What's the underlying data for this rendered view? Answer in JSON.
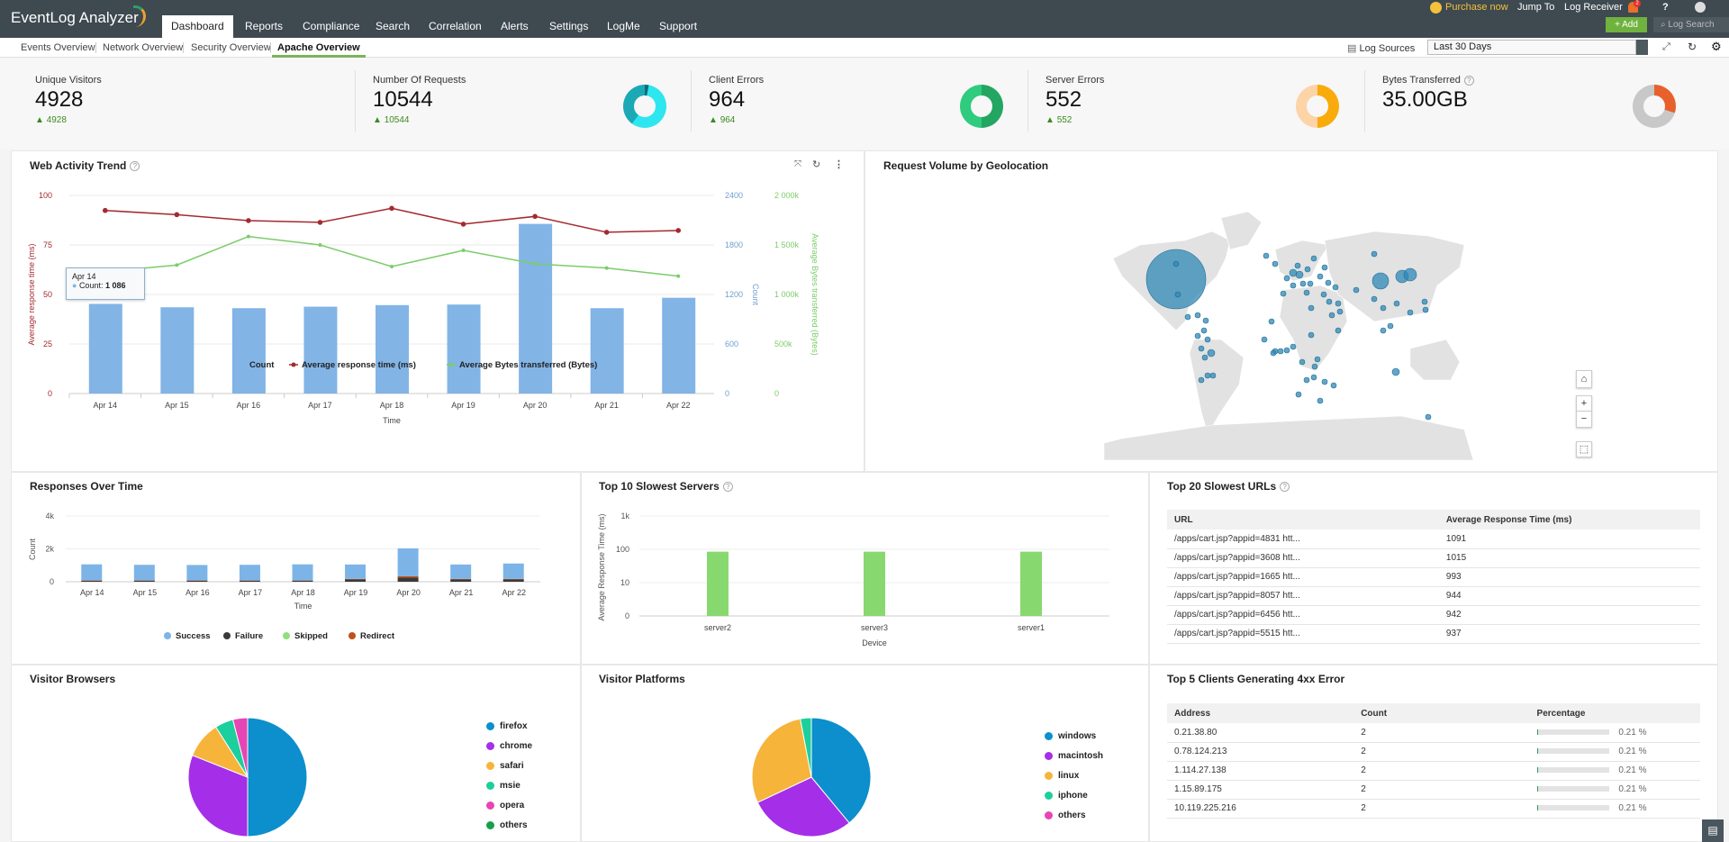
{
  "app": {
    "title": "EventLog Analyzer"
  },
  "nav": {
    "tabs": [
      "Dashboard",
      "Reports",
      "Compliance",
      "Search",
      "Correlation",
      "Alerts",
      "Settings",
      "LogMe",
      "Support"
    ],
    "active": "Dashboard"
  },
  "topright": {
    "purchase": "Purchase now",
    "jump_to": "Jump To",
    "log_receiver": "Log Receiver",
    "notif_count": "2",
    "help": "?",
    "add": "+ Add",
    "log_search": "Log Search"
  },
  "subnav": {
    "tabs": [
      "Events Overview",
      "Network Overview",
      "Security Overview",
      "Apache Overview"
    ],
    "active": "Apache Overview"
  },
  "toolbar": {
    "log_sources": "Log Sources",
    "date_range": "Last 30 Days"
  },
  "stats": [
    {
      "label": "Unique Visitors",
      "value": "4928",
      "delta": "4928"
    },
    {
      "label": "Number Of Requests",
      "value": "10544",
      "delta": "10544",
      "colors": [
        "#2ee6f0",
        "#1ba9b5",
        "#0e6d75"
      ]
    },
    {
      "label": "Client Errors",
      "value": "964",
      "delta": "964",
      "colors": [
        "#2fcb7e",
        "#23a662"
      ]
    },
    {
      "label": "Server Errors",
      "value": "552",
      "delta": "552",
      "colors": [
        "#fdd3a8",
        "#f9ab0c"
      ]
    },
    {
      "label": "Bytes Transferred",
      "value": "35.00GB",
      "colors": [
        "#c8c8c8",
        "#e8602c"
      ]
    }
  ],
  "web_activity": {
    "title": "Web Activity Trend",
    "tooltip": {
      "date": "Apr 14",
      "label": "Count:",
      "value": "1 086"
    }
  },
  "geo": {
    "title": "Request Volume by Geolocation",
    "home": "⌂",
    "zoom_in": "+",
    "zoom_out": "−"
  },
  "responses": {
    "title": "Responses Over Time"
  },
  "servers": {
    "title": "Top 10 Slowest Servers"
  },
  "urls": {
    "title": "Top 20 Slowest URLs",
    "columns": [
      "URL",
      "Average Response Time (ms)"
    ],
    "rows": [
      [
        "/apps/cart.jsp?appid=4831 htt...",
        "1091"
      ],
      [
        "/apps/cart.jsp?appid=3608 htt...",
        "1015"
      ],
      [
        "/apps/cart.jsp?appid=1665 htt...",
        "993"
      ],
      [
        "/apps/cart.jsp?appid=8057 htt...",
        "944"
      ],
      [
        "/apps/cart.jsp?appid=6456 htt...",
        "942"
      ],
      [
        "/apps/cart.jsp?appid=5515 htt...",
        "937"
      ]
    ]
  },
  "browsers": {
    "title": "Visitor Browsers"
  },
  "platforms": {
    "title": "Visitor Platforms"
  },
  "clients": {
    "title": "Top 5 Clients Generating 4xx Error",
    "columns": [
      "Address",
      "Count",
      "Percentage"
    ],
    "rows": [
      {
        "address": "0.21.38.80",
        "count": "2",
        "pct": "0.21 %",
        "fraction": 0.0021
      },
      {
        "address": "0.78.124.213",
        "count": "2",
        "pct": "0.21 %",
        "fraction": 0.0021
      },
      {
        "address": "1.114.27.138",
        "count": "2",
        "pct": "0.21 %",
        "fraction": 0.0021
      },
      {
        "address": "1.15.89.175",
        "count": "2",
        "pct": "0.21 %",
        "fraction": 0.0021
      },
      {
        "address": "10.119.225.216",
        "count": "2",
        "pct": "0.21 %",
        "fraction": 0.0021
      }
    ]
  },
  "chart_data": [
    {
      "type": "bar+line",
      "title": "Web Activity Trend",
      "categories": [
        "Apr 14",
        "Apr 15",
        "Apr 16",
        "Apr 17",
        "Apr 18",
        "Apr 19",
        "Apr 20",
        "Apr 21",
        "Apr 22"
      ],
      "xlabel": "Time",
      "series": [
        {
          "name": "Count",
          "type": "bar",
          "axis": "Count",
          "color": "#82b4e6",
          "values": [
            1086,
            1045,
            1034,
            1052,
            1071,
            1078,
            2055,
            1034,
            1160
          ]
        },
        {
          "name": "Average response time (ms)",
          "type": "line",
          "axis": "Average response time (ms)",
          "color": "#a32a2f",
          "values": [
            92.4,
            90.3,
            87.3,
            86.4,
            93.5,
            85.5,
            89.4,
            81.4,
            82.3
          ]
        },
        {
          "name": "Average Bytes transferred (Bytes)",
          "type": "line",
          "axis": "Average Bytes transferred (Bytes)",
          "color": "#7ccc6a",
          "values": [
            1230000,
            1297000,
            1585000,
            1500000,
            1282000,
            1445000,
            1309000,
            1267000,
            1185000
          ]
        }
      ],
      "axes": [
        {
          "label": "Average response time (ms)",
          "range": [
            0,
            100
          ],
          "ticks": [
            "0",
            "25",
            "50",
            "75",
            "100"
          ],
          "color": "#a32a2f"
        },
        {
          "label": "Count",
          "range": [
            0,
            2400
          ],
          "ticks": [
            "0",
            "600",
            "1200",
            "1800",
            "2400"
          ],
          "color": "#6fa0d0"
        },
        {
          "label": "Average Bytes transferred (Bytes)",
          "range": [
            0,
            2000000
          ],
          "ticks": [
            "0",
            "500k",
            "1 000k",
            "1 500k",
            "2 000k"
          ],
          "color": "#7ccc6a"
        }
      ],
      "legend": "bottom",
      "grid": true
    },
    {
      "type": "bar",
      "stacked": true,
      "title": "Responses Over Time",
      "categories": [
        "Apr 14",
        "Apr 15",
        "Apr 16",
        "Apr 17",
        "Apr 18",
        "Apr 19",
        "Apr 20",
        "Apr 21",
        "Apr 22"
      ],
      "xlabel": "Time",
      "ylabel": "Count",
      "ylim": [
        0,
        4000
      ],
      "yticks": [
        "0",
        "2k",
        "4k"
      ],
      "series": [
        {
          "name": "Success",
          "color": "#7cb4e8",
          "values": [
            980,
            950,
            940,
            950,
            980,
            880,
            1700,
            880,
            940
          ]
        },
        {
          "name": "Failure",
          "color": "#3a3a3a",
          "values": [
            60,
            60,
            60,
            60,
            60,
            140,
            250,
            140,
            140
          ]
        },
        {
          "name": "Skipped",
          "color": "#8ee07a",
          "values": [
            0,
            0,
            0,
            0,
            0,
            0,
            0,
            0,
            0
          ]
        },
        {
          "name": "Redirect",
          "color": "#c1501a",
          "values": [
            20,
            20,
            20,
            20,
            20,
            30,
            80,
            30,
            30
          ]
        }
      ],
      "legend": "bottom"
    },
    {
      "type": "bar",
      "title": "Top 10 Slowest Servers",
      "categories": [
        "server2",
        "server3",
        "server1"
      ],
      "values": [
        85,
        85,
        85
      ],
      "color": "#88d870",
      "xlabel": "Device",
      "ylabel": "Average Response Time (ms)",
      "scale": "log",
      "yticks": [
        "0",
        "10",
        "100",
        "1k"
      ]
    },
    {
      "type": "pie",
      "title": "Visitor Browsers",
      "labels": [
        "firefox",
        "chrome",
        "safari",
        "msie",
        "opera",
        "others"
      ],
      "values": [
        50,
        31,
        10,
        5,
        4,
        0
      ],
      "colors": [
        "#0c8fcc",
        "#a52ee8",
        "#f6b43a",
        "#1ccf9c",
        "#e646b4",
        "#16a04a"
      ],
      "legend": "right"
    },
    {
      "type": "pie",
      "title": "Visitor Platforms",
      "labels": [
        "windows",
        "macintosh",
        "linux",
        "iphone",
        "others"
      ],
      "values": [
        39,
        29,
        29,
        3,
        0
      ],
      "colors": [
        "#0c8fcc",
        "#a52ee8",
        "#f6b43a",
        "#1ccf9c",
        "#e646b4"
      ],
      "legend": "right"
    }
  ]
}
